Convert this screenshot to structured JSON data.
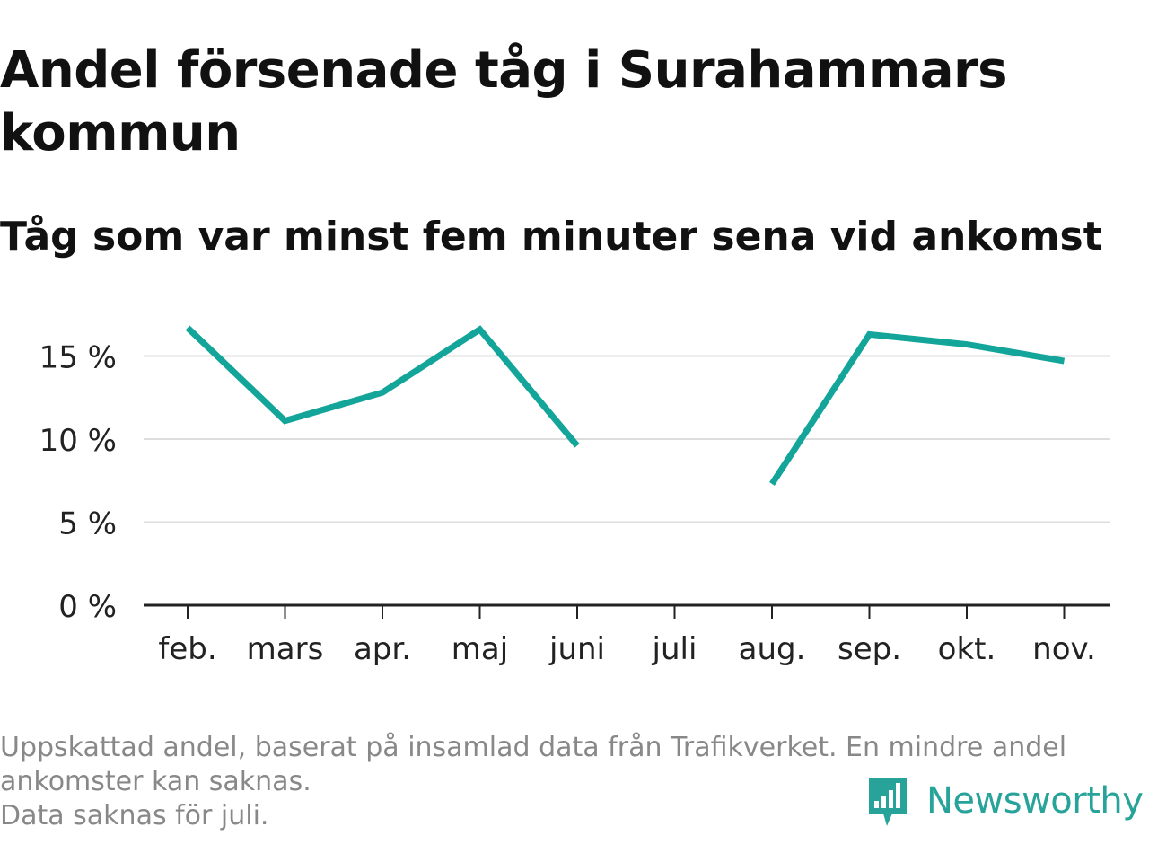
{
  "title": "Andel försenade tåg i Surahammars kommun",
  "subtitle": "Tåg som var minst fem minuter sena vid ankomst",
  "footer": {
    "line1": "Uppskattad andel, baserat på insamlad data från Trafikverket. En mindre andel",
    "line2": "ankomster kan saknas.",
    "line3": "Data saknas för juli."
  },
  "brand": {
    "name": "Newsworthy",
    "icon": "newsworthy-logo-icon",
    "color": "#27a39a"
  },
  "chart_data": {
    "type": "line",
    "title": "Andel försenade tåg i Surahammars kommun",
    "subtitle": "Tåg som var minst fem minuter sena vid ankomst",
    "categories": [
      "feb.",
      "mars",
      "apr.",
      "maj",
      "juni",
      "juli",
      "aug.",
      "sep.",
      "okt.",
      "nov."
    ],
    "series": [
      {
        "values": [
          16.7,
          11.1,
          12.8,
          16.6,
          9.6,
          null,
          7.3,
          16.3,
          15.7,
          14.7
        ],
        "color": "#14a59a"
      }
    ],
    "yticks": [
      0,
      5,
      10,
      15
    ],
    "ytick_labels": [
      "0 %",
      "5 %",
      "10 %",
      "15 %"
    ],
    "ylim": [
      0,
      17.5
    ],
    "xlabel": "",
    "ylabel": "",
    "grid": true,
    "gridColor": "#dddddd",
    "axisColor": "#222222"
  }
}
